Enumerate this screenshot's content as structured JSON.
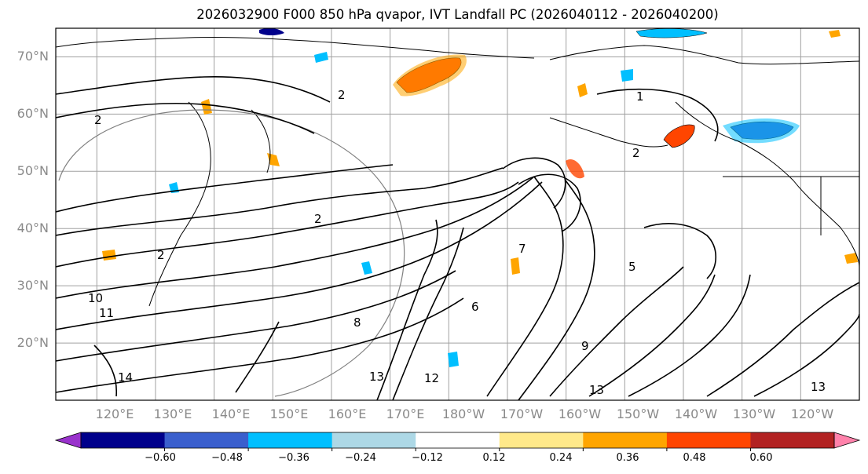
{
  "title": "2026032900 F000 850 hPa qvapor, IVT Landfall PC (2026040112 - 2026040200)",
  "lat_labels": [
    "70°N",
    "60°N",
    "50°N",
    "40°N",
    "30°N",
    "20°N"
  ],
  "lon_labels": [
    "120°E",
    "130°E",
    "140°E",
    "150°E",
    "160°E",
    "170°E",
    "180°W",
    "170°W",
    "160°W",
    "150°W",
    "140°W",
    "130°W",
    "120°W"
  ],
  "map_extent": {
    "lon_min": 113,
    "lon_max": 250,
    "lat_min": 10,
    "lat_max": 75
  },
  "colorbar": {
    "colors": [
      "#9932cc",
      "#00008b",
      "#3a5fcd",
      "#00bfff",
      "#add8e6",
      "#ffffff",
      "#ffe98a",
      "#ffa500",
      "#ff4500",
      "#b22222",
      "#ff82ab"
    ],
    "tick_labels": [
      "−0.60",
      "−0.48",
      "−0.36",
      "−0.24",
      "−0.12",
      "0.12",
      "0.24",
      "0.36",
      "0.48",
      "0.60"
    ]
  },
  "contour_labels": [
    "2",
    "2",
    "2",
    "2",
    "2",
    "1",
    "5",
    "6",
    "7",
    "8",
    "9",
    "10",
    "11",
    "12",
    "13",
    "13",
    "13",
    "14"
  ],
  "shaded_features": [
    {
      "name": "bering-orange-anomaly",
      "color": "#ff4500"
    },
    {
      "name": "alaska-orange-anomaly",
      "color": "#ff4500"
    },
    {
      "name": "canada-blue-anomaly",
      "color": "#3a5fcd"
    }
  ]
}
